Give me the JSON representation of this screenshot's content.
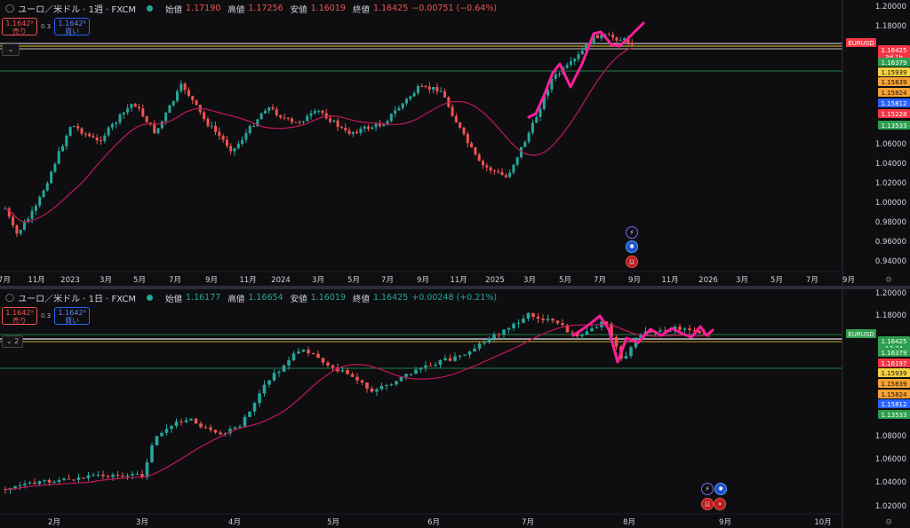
{
  "pane1": {
    "title": "ユーロ／米ドル · 1週 · FXCM",
    "ohlc": [
      {
        "k": "始値",
        "v": "1.17190"
      },
      {
        "k": "高値",
        "v": "1.17256"
      },
      {
        "k": "安値",
        "v": "1.16019"
      },
      {
        "k": "終値",
        "v": "1.16425"
      }
    ],
    "change": "−0.00751 (−0.64%)",
    "sell": {
      "price": "1.1642⁹",
      "label": "売り"
    },
    "buy": {
      "price": "1.1642⁸",
      "label": "買い"
    },
    "spread": "0.3",
    "collapse_label": "⌄",
    "x_labels": [
      "7月",
      "11月",
      "2023",
      "3月",
      "5月",
      "7月",
      "9月",
      "11月",
      "2024",
      "3月",
      "5月",
      "7月",
      "9月",
      "11月",
      "2025",
      "3月",
      "5月",
      "7月",
      "9月",
      "11月",
      "2026",
      "3月",
      "5月",
      "7月",
      "9月"
    ],
    "y_labels": [
      "1.20000",
      "1.18000",
      "1.06000",
      "1.04000",
      "1.02000",
      "1.00000",
      "0.98000",
      "0.96000",
      "0.94000"
    ],
    "price_tags": [
      {
        "text": "EURUSD",
        "sub": "",
        "color": "#f23645"
      },
      {
        "text": "1.16425",
        "sub": "3d 1h",
        "color": "#f23645"
      },
      {
        "text": "1.16379",
        "sub": "",
        "color": "#2e9e4f"
      },
      {
        "text": "1.15939",
        "sub": "",
        "color": "#f5d142"
      },
      {
        "text": "1.15839",
        "sub": "",
        "color": "#f7a133"
      },
      {
        "text": "1.15824",
        "sub": "",
        "color": "#f7a133"
      },
      {
        "text": "1.15812",
        "sub": "",
        "color": "#2962ff"
      },
      {
        "text": "1.15228",
        "sub": "",
        "color": "#f23645"
      },
      {
        "text": "1.13533",
        "sub": "",
        "color": "#2e9e4f"
      }
    ]
  },
  "pane2": {
    "title": "ユーロ／米ドル · 1日 · FXCM",
    "ohlc": [
      {
        "k": "始値",
        "v": "1.16177"
      },
      {
        "k": "高値",
        "v": "1.16654"
      },
      {
        "k": "安値",
        "v": "1.16019"
      },
      {
        "k": "終値",
        "v": "1.16425"
      }
    ],
    "change": "+0.00248 (+0.21%)",
    "sell": {
      "price": "1.1642⁹",
      "label": "売り"
    },
    "buy": {
      "price": "1.1642⁸",
      "label": "買い"
    },
    "spread": "0.3",
    "collapse_label": "⌄ 2",
    "x_labels": [
      "2月",
      "3月",
      "4月",
      "5月",
      "6月",
      "7月",
      "8月",
      "9月",
      "10月"
    ],
    "y_labels": [
      "1.20000",
      "1.18000",
      "1.08000",
      "1.06000",
      "1.04000",
      "1.02000"
    ],
    "price_tags": [
      {
        "text": "EURUSD",
        "sub": "",
        "color": "#2e9e4f"
      },
      {
        "text": "1.16425",
        "sub": "13:34",
        "color": "#2e9e4f"
      },
      {
        "text": "1.16379",
        "sub": "",
        "color": "#2e9e4f"
      },
      {
        "text": "1.16197",
        "sub": "",
        "color": "#f23645"
      },
      {
        "text": "1.15939",
        "sub": "",
        "color": "#f5d142"
      },
      {
        "text": "1.15839",
        "sub": "",
        "color": "#f7a133"
      },
      {
        "text": "1.15824",
        "sub": "",
        "color": "#f7a133"
      },
      {
        "text": "1.15812",
        "sub": "",
        "color": "#2962ff"
      },
      {
        "text": "1.13533",
        "sub": "",
        "color": "#2e9e4f"
      }
    ]
  },
  "colors": {
    "up": "#26a69a",
    "down": "#ef5350",
    "ma": "#c2185b",
    "draw": "#ff1e9a",
    "level_white": "#e8e8e8",
    "level_gold": "#c9a227",
    "level_green": "#1e7d46"
  },
  "icons": [
    "lightning-icon",
    "gear-icon",
    "us-flag-icon"
  ]
}
